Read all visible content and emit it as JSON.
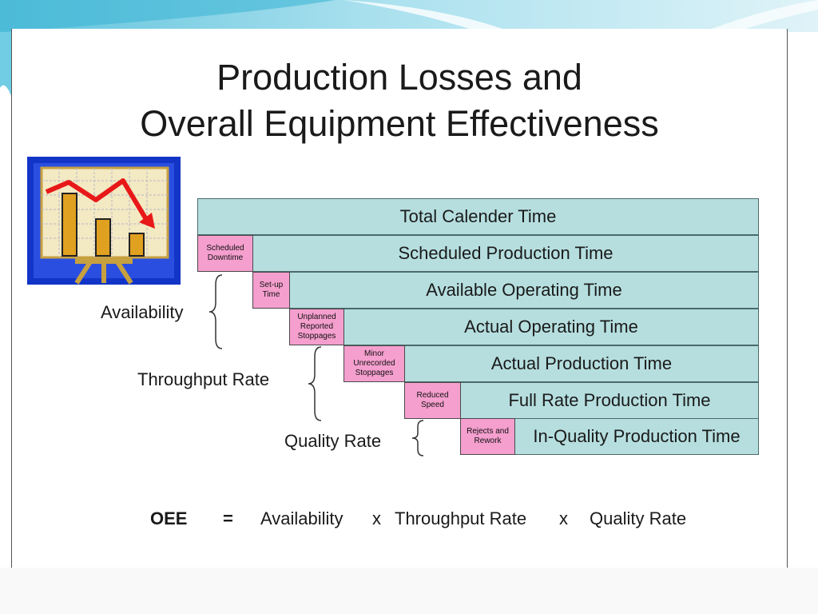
{
  "title": {
    "line1": "Production Losses and",
    "line2": "Overall Equipment Effectiveness"
  },
  "time_levels": [
    "Total Calender Time",
    "Scheduled Production Time",
    "Available Operating Time",
    "Actual Operating Time",
    "Actual Production Time",
    "Full Rate Production Time",
    "In-Quality Production Time"
  ],
  "losses": [
    [
      "Scheduled",
      "Downtime"
    ],
    [
      "Set-up",
      "Time"
    ],
    [
      "Unplanned",
      "Reported",
      "Stoppages"
    ],
    [
      "Minor",
      "Unrecorded",
      "Stoppages"
    ],
    [
      "Reduced",
      "Speed"
    ],
    [
      "Rejects and",
      "Rework"
    ]
  ],
  "factors": {
    "availability": "Availability",
    "throughput": "Throughput Rate",
    "quality": "Quality Rate"
  },
  "formula": {
    "oee": "OEE",
    "equals": "=",
    "availability": "Availability",
    "times1": "x",
    "throughput": "Throughput Rate",
    "times2": "x",
    "quality": "Quality Rate"
  },
  "icons": {
    "clipart": "declining-chart-icon"
  },
  "colors": {
    "time_box": "#b6dedf",
    "loss_box": "#f59fce"
  }
}
